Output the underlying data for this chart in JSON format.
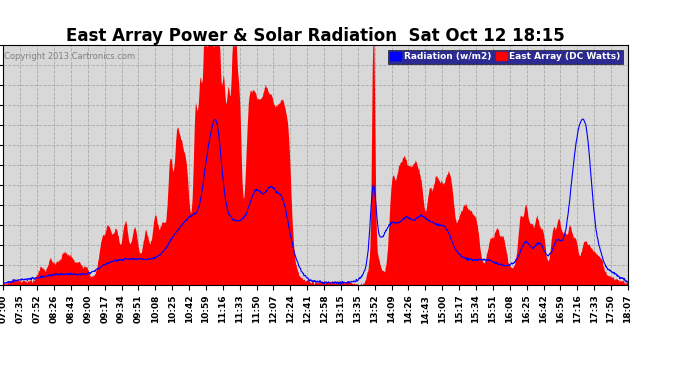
{
  "title": "East Array Power & Solar Radiation  Sat Oct 12 18:15",
  "copyright": "Copyright 2013 Cartronics.com",
  "legend_radiation": "Radiation (w/m2)",
  "legend_array": "East Array (DC Watts)",
  "ymax": 1282.8,
  "ymin": 0.0,
  "yticks": [
    0.0,
    106.9,
    213.8,
    320.7,
    427.6,
    534.5,
    641.4,
    748.3,
    855.2,
    962.1,
    1069.0,
    1175.9,
    1282.8
  ],
  "background_color": "#ffffff",
  "plot_background": "#d8d8d8",
  "red_fill_color": "#ff0000",
  "blue_line_color": "#0000ff",
  "grid_color": "#aaaaaa",
  "title_fontsize": 12,
  "axis_fontsize": 6.5,
  "xtick_labels": [
    "07:00",
    "07:35",
    "07:52",
    "08:26",
    "08:43",
    "09:00",
    "09:17",
    "09:34",
    "09:51",
    "10:08",
    "10:25",
    "10:42",
    "10:59",
    "11:16",
    "11:33",
    "11:50",
    "12:07",
    "12:24",
    "12:41",
    "12:58",
    "13:15",
    "13:35",
    "13:52",
    "14:09",
    "14:26",
    "14:43",
    "15:00",
    "15:17",
    "15:34",
    "15:51",
    "16:08",
    "16:25",
    "16:42",
    "16:59",
    "17:16",
    "17:33",
    "17:50",
    "18:07"
  ]
}
